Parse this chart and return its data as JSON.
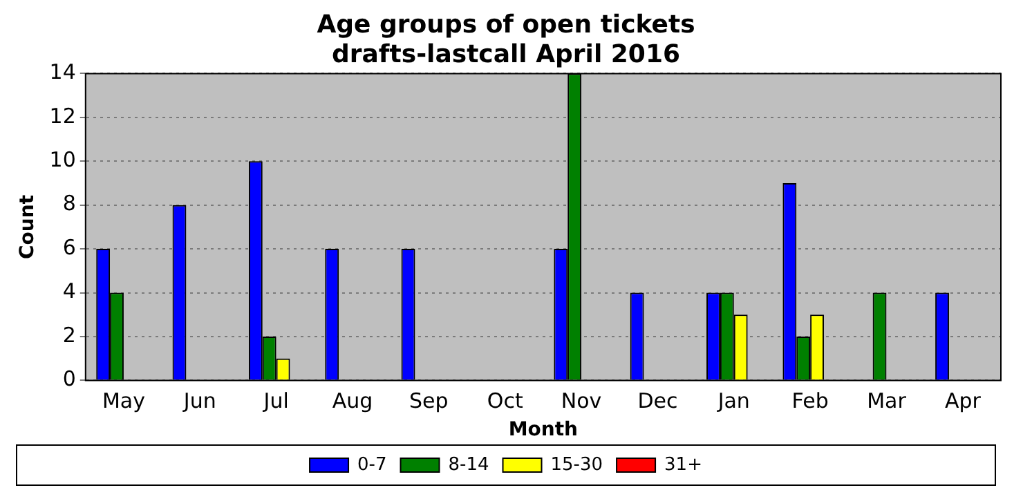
{
  "chart_data": {
    "type": "bar",
    "title": "Age groups of open tickets\ndrafts-lastcall April 2016",
    "xlabel": "Month",
    "ylabel": "Count",
    "categories": [
      "May",
      "Jun",
      "Jul",
      "Aug",
      "Sep",
      "Oct",
      "Nov",
      "Dec",
      "Jan",
      "Feb",
      "Mar",
      "Apr"
    ],
    "series": [
      {
        "name": "0-7",
        "color": "#0000ff",
        "values": [
          6,
          8,
          10,
          6,
          6,
          0,
          6,
          4,
          4,
          9,
          0,
          4
        ]
      },
      {
        "name": "8-14",
        "color": "#008000",
        "values": [
          4,
          0,
          2,
          0,
          0,
          0,
          14,
          0,
          4,
          2,
          4,
          0
        ]
      },
      {
        "name": "15-30",
        "color": "#ffff00",
        "values": [
          0,
          0,
          1,
          0,
          0,
          0,
          0,
          0,
          3,
          3,
          0,
          0
        ]
      },
      {
        "name": "31+",
        "color": "#ff0000",
        "values": [
          0,
          0,
          0,
          0,
          0,
          0,
          0,
          0,
          0,
          0,
          0,
          0
        ]
      }
    ],
    "ylim": [
      0,
      14
    ],
    "yticks": [
      0,
      2,
      4,
      6,
      8,
      10,
      12,
      14
    ],
    "grid": "y",
    "legend": "bottom"
  }
}
